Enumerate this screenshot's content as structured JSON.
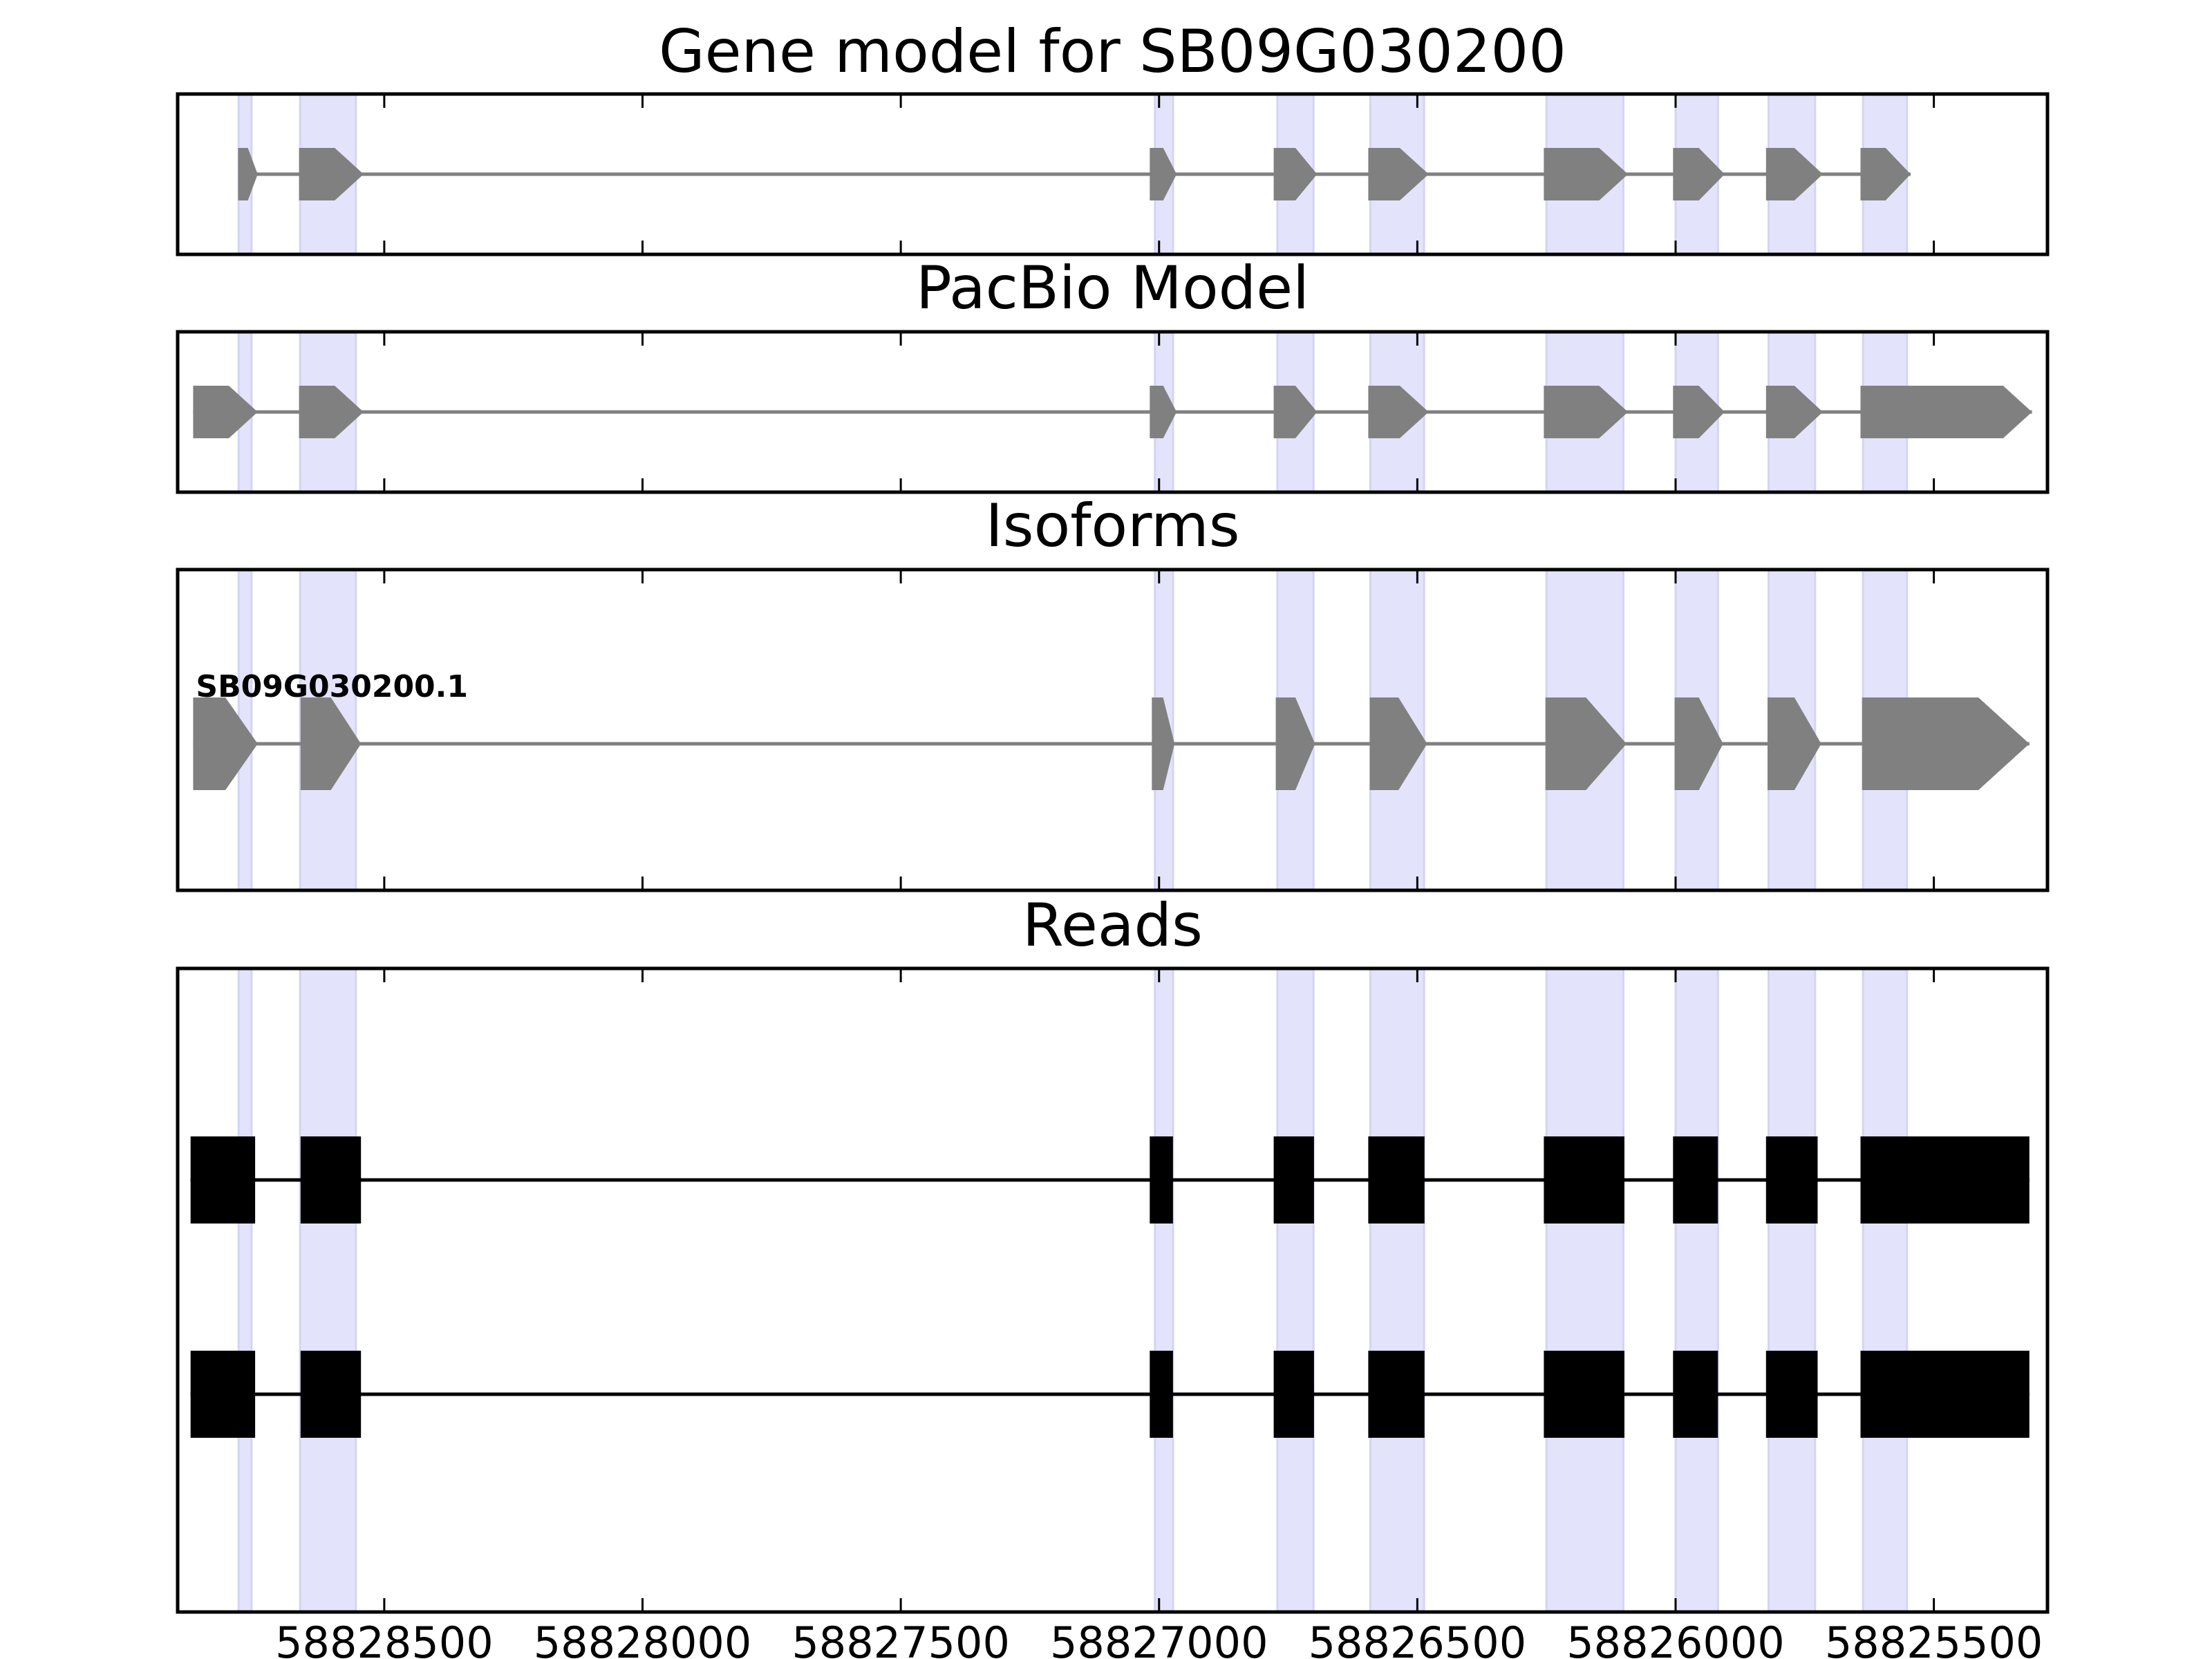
{
  "chart_data": {
    "type": "gene-structure",
    "x_axis": {
      "direction": "reversed",
      "xlim": [
        58828900,
        58825280
      ],
      "ticks": [
        58828500,
        58828000,
        58827500,
        58827000,
        58826500,
        58826000,
        58825500
      ],
      "tick_labels": [
        "58828500",
        "58828000",
        "58827500",
        "58827000",
        "58826500",
        "58826000",
        "58825500"
      ]
    },
    "colors": {
      "exon_highlight": "#e3e3fc",
      "model_exon": "#808080",
      "intron_line": "#808080",
      "read_exon": "#000000",
      "read_line": "#000000",
      "frame": "#000000"
    },
    "highlight_bands": [
      [
        58828782,
        58828757
      ],
      [
        58828663,
        58828555
      ],
      [
        58827008,
        58826973
      ],
      [
        58826771,
        58826701
      ],
      [
        58826591,
        58826487
      ],
      [
        58826250,
        58826101
      ],
      [
        58826000,
        58825918
      ],
      [
        58825820,
        58825730
      ],
      [
        58825637,
        58825552
      ]
    ],
    "panels": [
      {
        "title": "Gene model for SB09G030200",
        "kind": "model",
        "exons": [
          [
            58828783,
            58828745
          ],
          [
            58828665,
            58828540
          ],
          [
            58827018,
            58826966
          ],
          [
            58826778,
            58826694
          ],
          [
            58826595,
            58826478
          ],
          [
            58826255,
            58826092
          ],
          [
            58826005,
            58825905
          ],
          [
            58825825,
            58825715
          ],
          [
            58825642,
            58825545
          ]
        ]
      },
      {
        "title": "PacBio Model",
        "kind": "model",
        "exons": [
          [
            58828870,
            58828745
          ],
          [
            58828665,
            58828540
          ],
          [
            58827018,
            58826966
          ],
          [
            58826778,
            58826694
          ],
          [
            58826595,
            58826478
          ],
          [
            58826255,
            58826092
          ],
          [
            58826005,
            58825905
          ],
          [
            58825825,
            58825715
          ],
          [
            58825642,
            58825310
          ]
        ]
      },
      {
        "title": "Isoforms",
        "kind": "isoform",
        "isoform_label": "SB09G030200.1",
        "exons": [
          [
            58828870,
            58828745
          ],
          [
            58828662,
            58828545
          ],
          [
            58827014,
            58826970
          ],
          [
            58826774,
            58826698
          ],
          [
            58826592,
            58826481
          ],
          [
            58826252,
            58826095
          ],
          [
            58826002,
            58825908
          ],
          [
            58825822,
            58825718
          ],
          [
            58825639,
            58825315
          ]
        ]
      },
      {
        "title": "Reads",
        "kind": "reads",
        "reads": [
          {
            "exons": [
              [
                58828875,
                58828750
              ],
              [
                58828662,
                58828545
              ],
              [
                58827018,
                58826973
              ],
              [
                58826778,
                58826700
              ],
              [
                58826595,
                58826486
              ],
              [
                58826255,
                58826099
              ],
              [
                58826005,
                58825918
              ],
              [
                58825825,
                58825725
              ],
              [
                58825642,
                58825315
              ]
            ]
          },
          {
            "exons": [
              [
                58828875,
                58828750
              ],
              [
                58828662,
                58828545
              ],
              [
                58827018,
                58826973
              ],
              [
                58826778,
                58826700
              ],
              [
                58826595,
                58826486
              ],
              [
                58826255,
                58826099
              ],
              [
                58826005,
                58825918
              ],
              [
                58825825,
                58825725
              ],
              [
                58825642,
                58825315
              ]
            ]
          }
        ]
      }
    ]
  }
}
